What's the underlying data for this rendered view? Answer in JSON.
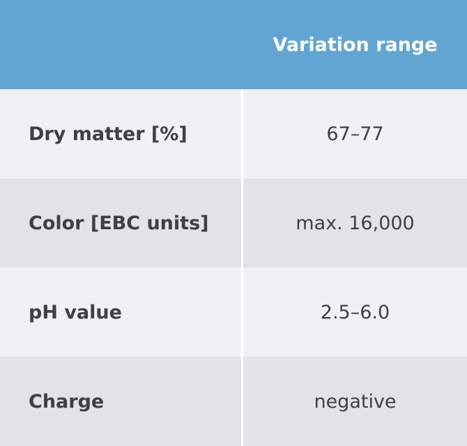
{
  "table": {
    "header": "Variation range",
    "rows": [
      [
        "Dry matter [%]",
        "67–77"
      ],
      [
        "Color [EBC units]",
        "max. 16,000"
      ],
      [
        "pH value",
        "2.5–6.0"
      ],
      [
        "Charge",
        "negative"
      ]
    ]
  }
}
